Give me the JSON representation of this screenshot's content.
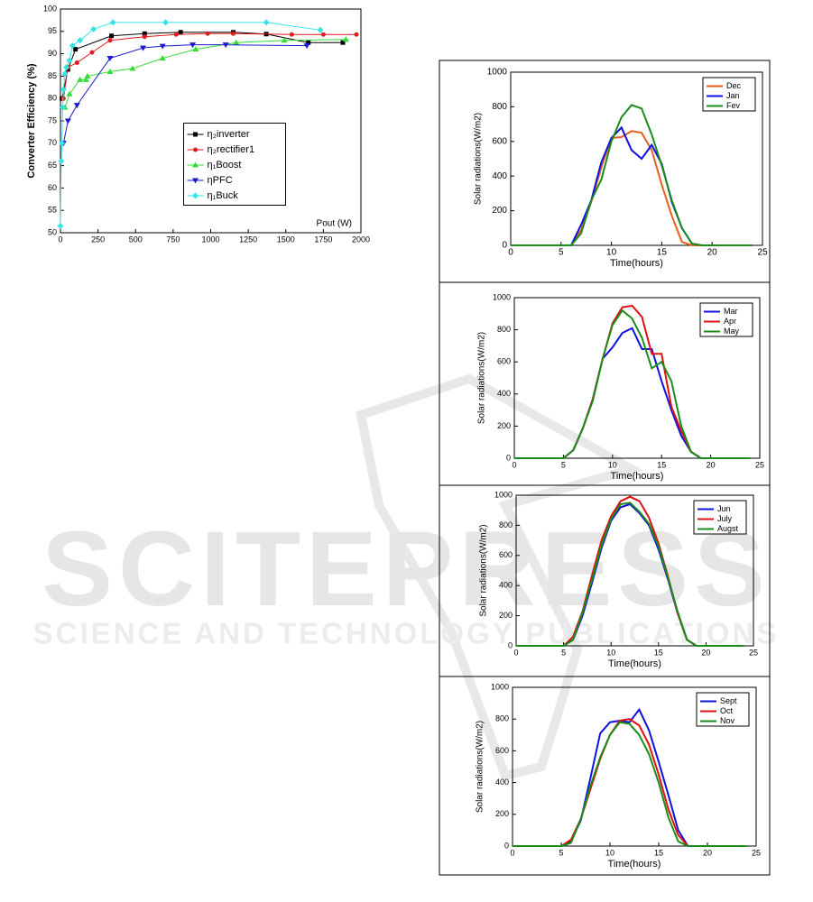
{
  "chart_data": [
    {
      "type": "line",
      "y_label": "Converter Efficiency (%)",
      "x_label": "Pout (W)",
      "xlim": [
        0,
        2000
      ],
      "xticks": [
        0,
        250,
        500,
        750,
        1000,
        1250,
        1500,
        1750,
        2000
      ],
      "ylim": [
        50,
        100
      ],
      "yticks": [
        50,
        55,
        60,
        65,
        70,
        75,
        80,
        85,
        90,
        95,
        100
      ],
      "legend": "center-right",
      "series": [
        {
          "name": "η₂inverter",
          "color": "#000000",
          "marker": "square",
          "x": [
            10,
            50,
            100,
            340,
            560,
            800,
            1150,
            1370,
            1650,
            1880
          ],
          "values": [
            80,
            86.5,
            91,
            94,
            94.5,
            94.8,
            94.8,
            94.4,
            92.5,
            92.5
          ]
        },
        {
          "name": "η₂rectifier1",
          "color": "#e41a1c",
          "marker": "circle",
          "x": [
            20,
            50,
            110,
            210,
            330,
            560,
            770,
            980,
            1150,
            1540,
            1750,
            1970
          ],
          "values": [
            80,
            87,
            88,
            90.3,
            93,
            93.8,
            94.3,
            94.5,
            94.5,
            94.3,
            94.3,
            94.3
          ]
        },
        {
          "name": "η₁Boost",
          "color": "#33dd33",
          "marker": "triangle",
          "x": [
            30,
            60,
            130,
            170,
            180,
            330,
            480,
            680,
            900,
            1170,
            1490,
            1900
          ],
          "values": [
            78,
            81,
            84.2,
            84.2,
            85,
            86,
            86.7,
            89,
            91,
            92.5,
            93,
            93.2
          ]
        },
        {
          "name": "ηPFC",
          "color": "#1a1acc",
          "marker": "triangle-down",
          "x": [
            20,
            50,
            110,
            330,
            550,
            680,
            880,
            1100,
            1640
          ],
          "values": [
            70,
            75,
            78.5,
            89,
            91.3,
            91.7,
            92,
            92,
            91.8
          ]
        },
        {
          "name": "η₁Buck",
          "color": "#33e5e5",
          "marker": "diamond",
          "x": [
            0,
            5,
            10,
            15,
            20,
            30,
            40,
            60,
            80,
            130,
            220,
            350,
            700,
            1370,
            1730
          ],
          "values": [
            51.5,
            66,
            70,
            78,
            82,
            85.5,
            87,
            88.5,
            91.8,
            93,
            95.5,
            97,
            97,
            97,
            95.3
          ]
        }
      ]
    },
    {
      "type": "line",
      "y_label": "Solar radiations(W/m2)",
      "x_label": "Time(hours)",
      "xlim": [
        0,
        25
      ],
      "xticks": [
        0,
        5,
        10,
        15,
        20,
        25
      ],
      "ylim": [
        0,
        1000
      ],
      "yticks": [
        0,
        200,
        400,
        600,
        800,
        1000
      ],
      "legend": "upper-right",
      "x": [
        0,
        1,
        2,
        3,
        4,
        5,
        6,
        7,
        8,
        9,
        10,
        11,
        12,
        13,
        14,
        15,
        16,
        17,
        18,
        19,
        20,
        21,
        22,
        23,
        24
      ],
      "series": [
        {
          "name": "Dec",
          "color": "#e8601c",
          "values": [
            0,
            0,
            0,
            0,
            0,
            0,
            0,
            90,
            250,
            450,
            620,
            625,
            660,
            650,
            550,
            350,
            170,
            20,
            0,
            0,
            0,
            0,
            0,
            0,
            0
          ]
        },
        {
          "name": "Jan",
          "color": "#1010e0",
          "values": [
            0,
            0,
            0,
            0,
            0,
            0,
            0,
            120,
            260,
            480,
            620,
            680,
            550,
            500,
            580,
            470,
            250,
            100,
            10,
            0,
            0,
            0,
            0,
            0,
            0
          ]
        },
        {
          "name": "Fev",
          "color": "#1a8c1a",
          "values": [
            0,
            0,
            0,
            0,
            0,
            0,
            0,
            70,
            260,
            380,
            600,
            740,
            810,
            790,
            640,
            460,
            260,
            100,
            10,
            0,
            0,
            0,
            0,
            0,
            0
          ]
        }
      ]
    },
    {
      "type": "line",
      "y_label": "Solar radiations(W/m2)",
      "x_label": "Time(hours)",
      "xlim": [
        0,
        25
      ],
      "xticks": [
        0,
        5,
        10,
        15,
        20,
        25
      ],
      "ylim": [
        0,
        1000
      ],
      "yticks": [
        0,
        200,
        400,
        600,
        800,
        1000
      ],
      "legend": "upper-right",
      "x": [
        0,
        1,
        2,
        3,
        4,
        5,
        6,
        7,
        8,
        9,
        10,
        11,
        12,
        13,
        14,
        15,
        16,
        17,
        18,
        19,
        20,
        21,
        22,
        23,
        24
      ],
      "series": [
        {
          "name": "Mar",
          "color": "#1010e0",
          "values": [
            0,
            0,
            0,
            0,
            0,
            0,
            50,
            190,
            370,
            620,
            690,
            780,
            810,
            680,
            680,
            480,
            300,
            140,
            40,
            0,
            0,
            0,
            0,
            0,
            0
          ]
        },
        {
          "name": "Apr",
          "color": "#e01010",
          "values": [
            0,
            0,
            0,
            0,
            0,
            0,
            50,
            190,
            370,
            620,
            840,
            940,
            950,
            880,
            650,
            650,
            320,
            170,
            40,
            0,
            0,
            0,
            0,
            0,
            0
          ]
        },
        {
          "name": "May",
          "color": "#1a8c1a",
          "values": [
            0,
            0,
            0,
            0,
            0,
            0,
            50,
            190,
            360,
            620,
            830,
            920,
            870,
            750,
            560,
            600,
            480,
            200,
            40,
            0,
            0,
            0,
            0,
            0,
            0
          ]
        }
      ]
    },
    {
      "type": "line",
      "y_label": "Solar radiations(W/m2)",
      "x_label": "Time(hours)",
      "xlim": [
        0,
        25
      ],
      "xticks": [
        0,
        5,
        10,
        15,
        20,
        25
      ],
      "ylim": [
        0,
        1000
      ],
      "yticks": [
        0,
        200,
        400,
        600,
        800,
        1000
      ],
      "legend": "upper-right",
      "x": [
        0,
        1,
        2,
        3,
        4,
        5,
        6,
        7,
        8,
        9,
        10,
        11,
        12,
        13,
        14,
        15,
        16,
        17,
        18,
        19,
        20,
        21,
        22,
        23,
        24
      ],
      "series": [
        {
          "name": "Jun",
          "color": "#1010e0",
          "values": [
            0,
            0,
            0,
            0,
            0,
            0,
            40,
            200,
            420,
            650,
            830,
            920,
            940,
            880,
            800,
            640,
            440,
            220,
            40,
            0,
            0,
            0,
            0,
            0,
            0
          ]
        },
        {
          "name": "July",
          "color": "#e01010",
          "values": [
            0,
            0,
            0,
            0,
            0,
            0,
            60,
            230,
            470,
            700,
            860,
            960,
            990,
            960,
            850,
            680,
            460,
            220,
            40,
            0,
            0,
            0,
            0,
            0,
            0
          ]
        },
        {
          "name": "Augst",
          "color": "#1a8c1a",
          "values": [
            0,
            0,
            0,
            0,
            0,
            0,
            40,
            220,
            440,
            670,
            840,
            940,
            950,
            890,
            810,
            660,
            450,
            230,
            40,
            0,
            0,
            0,
            0,
            0,
            0
          ]
        }
      ]
    },
    {
      "type": "line",
      "y_label": "Solar radiations(W/m2)",
      "x_label": "Time(hours)",
      "xlim": [
        0,
        25
      ],
      "xticks": [
        0,
        5,
        10,
        15,
        20,
        25
      ],
      "ylim": [
        0,
        1000
      ],
      "yticks": [
        0,
        200,
        400,
        600,
        800,
        1000
      ],
      "legend": "upper-right",
      "x": [
        0,
        1,
        2,
        3,
        4,
        5,
        6,
        7,
        8,
        9,
        10,
        11,
        12,
        13,
        14,
        15,
        16,
        17,
        18,
        19,
        20,
        21,
        22,
        23,
        24
      ],
      "series": [
        {
          "name": "Sept",
          "color": "#1010e0",
          "values": [
            0,
            0,
            0,
            0,
            0,
            0,
            30,
            160,
            430,
            710,
            780,
            790,
            780,
            860,
            730,
            530,
            320,
            100,
            0,
            0,
            0,
            0,
            0,
            0,
            0
          ]
        },
        {
          "name": "Oct",
          "color": "#e01010",
          "values": [
            0,
            0,
            0,
            0,
            0,
            0,
            40,
            170,
            360,
            550,
            700,
            790,
            800,
            760,
            640,
            450,
            230,
            70,
            0,
            0,
            0,
            0,
            0,
            0,
            0
          ]
        },
        {
          "name": "Nov",
          "color": "#1a8c1a",
          "values": [
            0,
            0,
            0,
            0,
            0,
            0,
            20,
            170,
            380,
            560,
            700,
            780,
            770,
            700,
            580,
            400,
            180,
            30,
            0,
            0,
            0,
            0,
            0,
            0,
            0
          ]
        }
      ]
    }
  ],
  "watermark": {
    "title": "SCITEPRESS",
    "subtitle": "SCIENCE AND TECHNOLOGY PUBLICATIONS"
  }
}
